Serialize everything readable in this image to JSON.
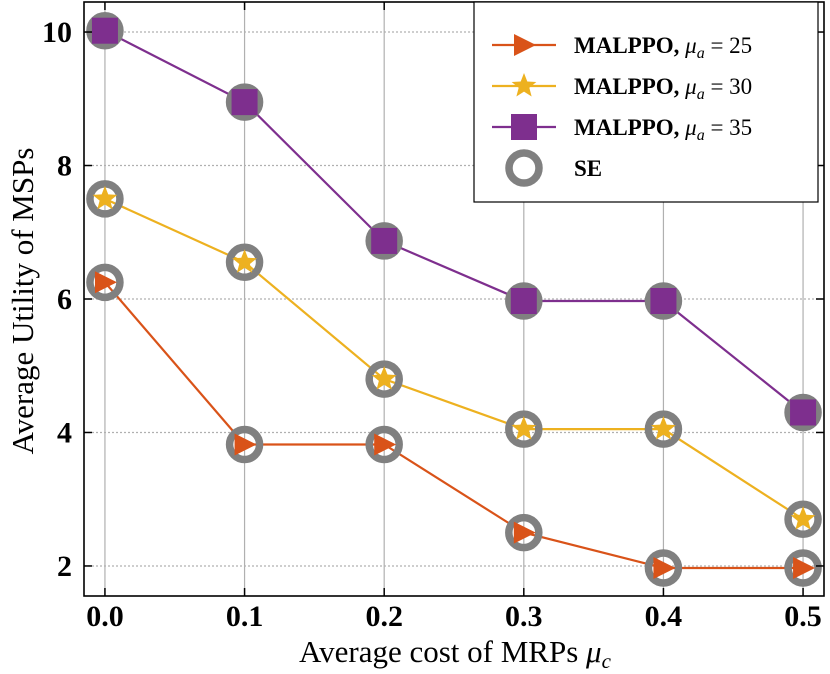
{
  "chart_data": {
    "type": "line",
    "title": "",
    "xlabel": "Average cost of MRPs",
    "xlabel_symbol": "μ",
    "xlabel_subscript": "c",
    "ylabel": "Average Utility of MSPs",
    "x": [
      0.0,
      0.1,
      0.2,
      0.3,
      0.4,
      0.5
    ],
    "x_ticks": [
      "0.0",
      "0.1",
      "0.2",
      "0.3",
      "0.4",
      "0.5"
    ],
    "y_ticks": [
      "2",
      "4",
      "6",
      "8",
      "10"
    ],
    "xlim": [
      -0.015,
      0.515
    ],
    "ylim": [
      1.55,
      10.45
    ],
    "grid": true,
    "legend_position": "top-right",
    "series": [
      {
        "name": "MALPPO, μ_a = 25",
        "label_text": "MALPPO, ",
        "mu_symbol": "μ",
        "mu_sub": "a",
        "equals": " = 25",
        "color": "#d95319",
        "marker": "triangle-right",
        "values": [
          6.25,
          3.82,
          3.82,
          2.5,
          1.97,
          1.97
        ]
      },
      {
        "name": "MALPPO, μ_a = 30",
        "label_text": "MALPPO, ",
        "mu_symbol": "μ",
        "mu_sub": "a",
        "equals": " = 30",
        "color": "#edb120",
        "marker": "star",
        "values": [
          7.5,
          6.55,
          4.8,
          4.05,
          4.05,
          2.7
        ]
      },
      {
        "name": "MALPPO, μ_a = 35",
        "label_text": "MALPPO, ",
        "mu_symbol": "μ",
        "mu_sub": "a",
        "equals": " = 35",
        "color": "#7e2f8e",
        "marker": "square",
        "values": [
          10.02,
          8.95,
          6.87,
          5.97,
          5.97,
          4.3
        ]
      },
      {
        "name": "SE",
        "label_text": "SE",
        "color": "#808080",
        "marker": "circle-hollow",
        "values_by_series": true
      }
    ]
  }
}
